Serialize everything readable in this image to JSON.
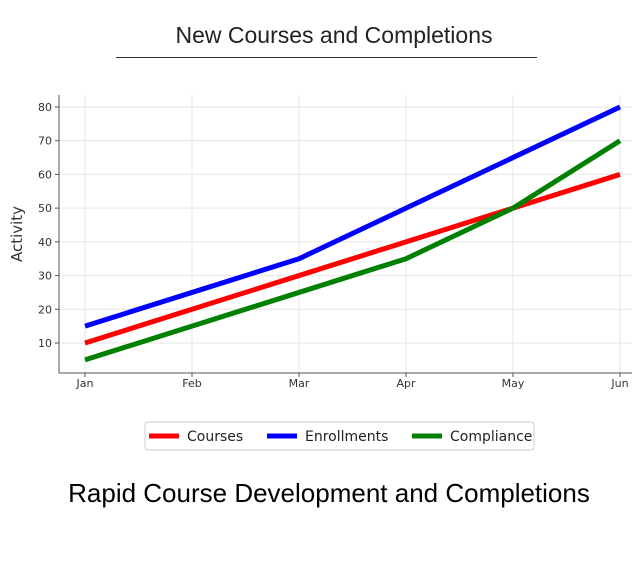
{
  "header": {
    "title": "New Courses and Completions"
  },
  "caption": "Rapid Course Development and Completions",
  "chart_data": {
    "type": "line",
    "categories": [
      "Jan",
      "Feb",
      "Mar",
      "Apr",
      "May",
      "Jun"
    ],
    "ylabel": "Activity",
    "ylim": [
      0,
      85
    ],
    "yticks": [
      10,
      20,
      30,
      40,
      50,
      60,
      70,
      80
    ],
    "grid": true,
    "legend_position": "bottom",
    "series": [
      {
        "name": "Courses",
        "color": "#ff0000",
        "values": [
          10,
          20,
          30,
          40,
          50,
          60
        ]
      },
      {
        "name": "Enrollments",
        "color": "#0000ff",
        "values": [
          15,
          25,
          35,
          50,
          65,
          80
        ]
      },
      {
        "name": "Compliance",
        "color": "#008000",
        "values": [
          5,
          15,
          25,
          35,
          50,
          70
        ]
      }
    ]
  }
}
